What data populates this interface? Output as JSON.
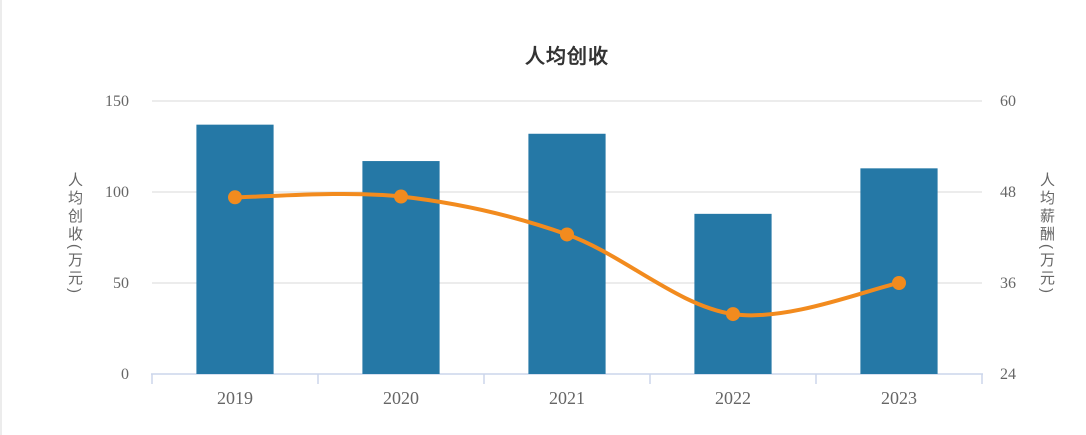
{
  "title": "人均创收",
  "colors": {
    "bar": "#2578a6",
    "line": "#f28b1e",
    "marker": "#f28b1e",
    "grid": "#e6e6e6",
    "axis_line": "#ccd6eb",
    "tick_label": "#666666",
    "title_color": "#333333",
    "panel_border": "#ececec",
    "background": "#ffffff"
  },
  "chart_data": {
    "type": "bar",
    "subtype": "combo-bar-line-dual-axis",
    "title": "人均创收",
    "categories": [
      "2019",
      "2020",
      "2021",
      "2022",
      "2023"
    ],
    "series": [
      {
        "name": "人均创收",
        "type": "bar",
        "axis": "left",
        "values": [
          137,
          117,
          132,
          88,
          113
        ]
      },
      {
        "name": "人均薪酬",
        "type": "line",
        "axis": "right",
        "smooth": true,
        "values": [
          47.3,
          47.4,
          42.4,
          31.9,
          36.0
        ]
      }
    ],
    "left_axis": {
      "label": "人均创收(万元)",
      "min": 0,
      "max": 150,
      "ticks": [
        0,
        50,
        100,
        150
      ]
    },
    "right_axis": {
      "label": "人均薪酬(万元)",
      "min": 24,
      "max": 60,
      "ticks": [
        24,
        36,
        48,
        60
      ]
    },
    "x_axis": {
      "tick_marks": true
    },
    "grid": true,
    "legend": false
  }
}
